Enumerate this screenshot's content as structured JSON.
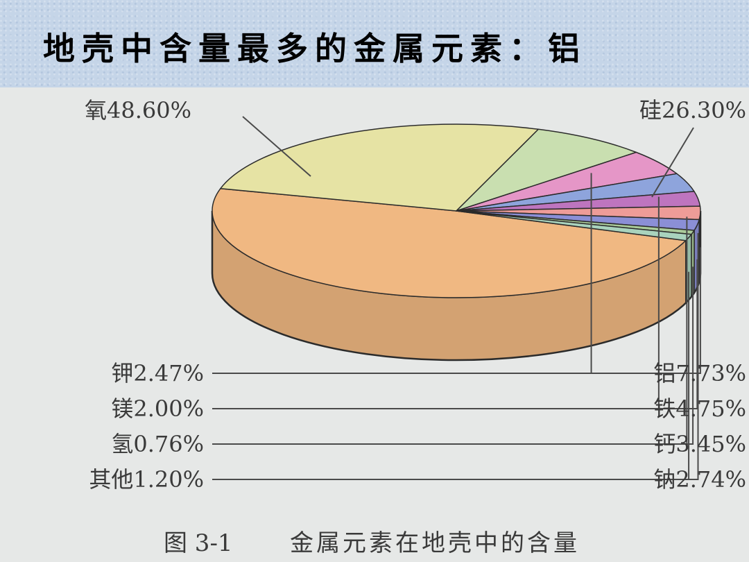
{
  "title": "地壳中含量最多的金属元素：铝",
  "caption": {
    "figure_no": "图 3-1",
    "text": "金属元素在地壳中的含量"
  },
  "chart_data": {
    "type": "pie",
    "style": "3d",
    "slices": [
      {
        "name": "氧",
        "value": 48.6,
        "display": "氧48.60%",
        "color": "#f0b882"
      },
      {
        "name": "硅",
        "value": 26.3,
        "display": "硅26.30%",
        "color": "#e6e3a4"
      },
      {
        "name": "铝",
        "value": 7.73,
        "display": "铝7.73%",
        "color": "#c9dfb0"
      },
      {
        "name": "铁",
        "value": 4.75,
        "display": "铁4.75%",
        "color": "#e596c7"
      },
      {
        "name": "钙",
        "value": 3.45,
        "display": "钙3.45%",
        "color": "#8ea4dc"
      },
      {
        "name": "钠",
        "value": 2.74,
        "display": "钠2.74%",
        "color": "#be75bf"
      },
      {
        "name": "钾",
        "value": 2.47,
        "display": "钾2.47%",
        "color": "#ee9c98"
      },
      {
        "name": "镁",
        "value": 2.0,
        "display": "镁2.00%",
        "color": "#8b8fd6"
      },
      {
        "name": "氢",
        "value": 0.76,
        "display": "氢0.76%",
        "color": "#aacb9a"
      },
      {
        "name": "其他",
        "value": 1.2,
        "display": "其他1.20%",
        "color": "#a9d3bd"
      }
    ]
  }
}
